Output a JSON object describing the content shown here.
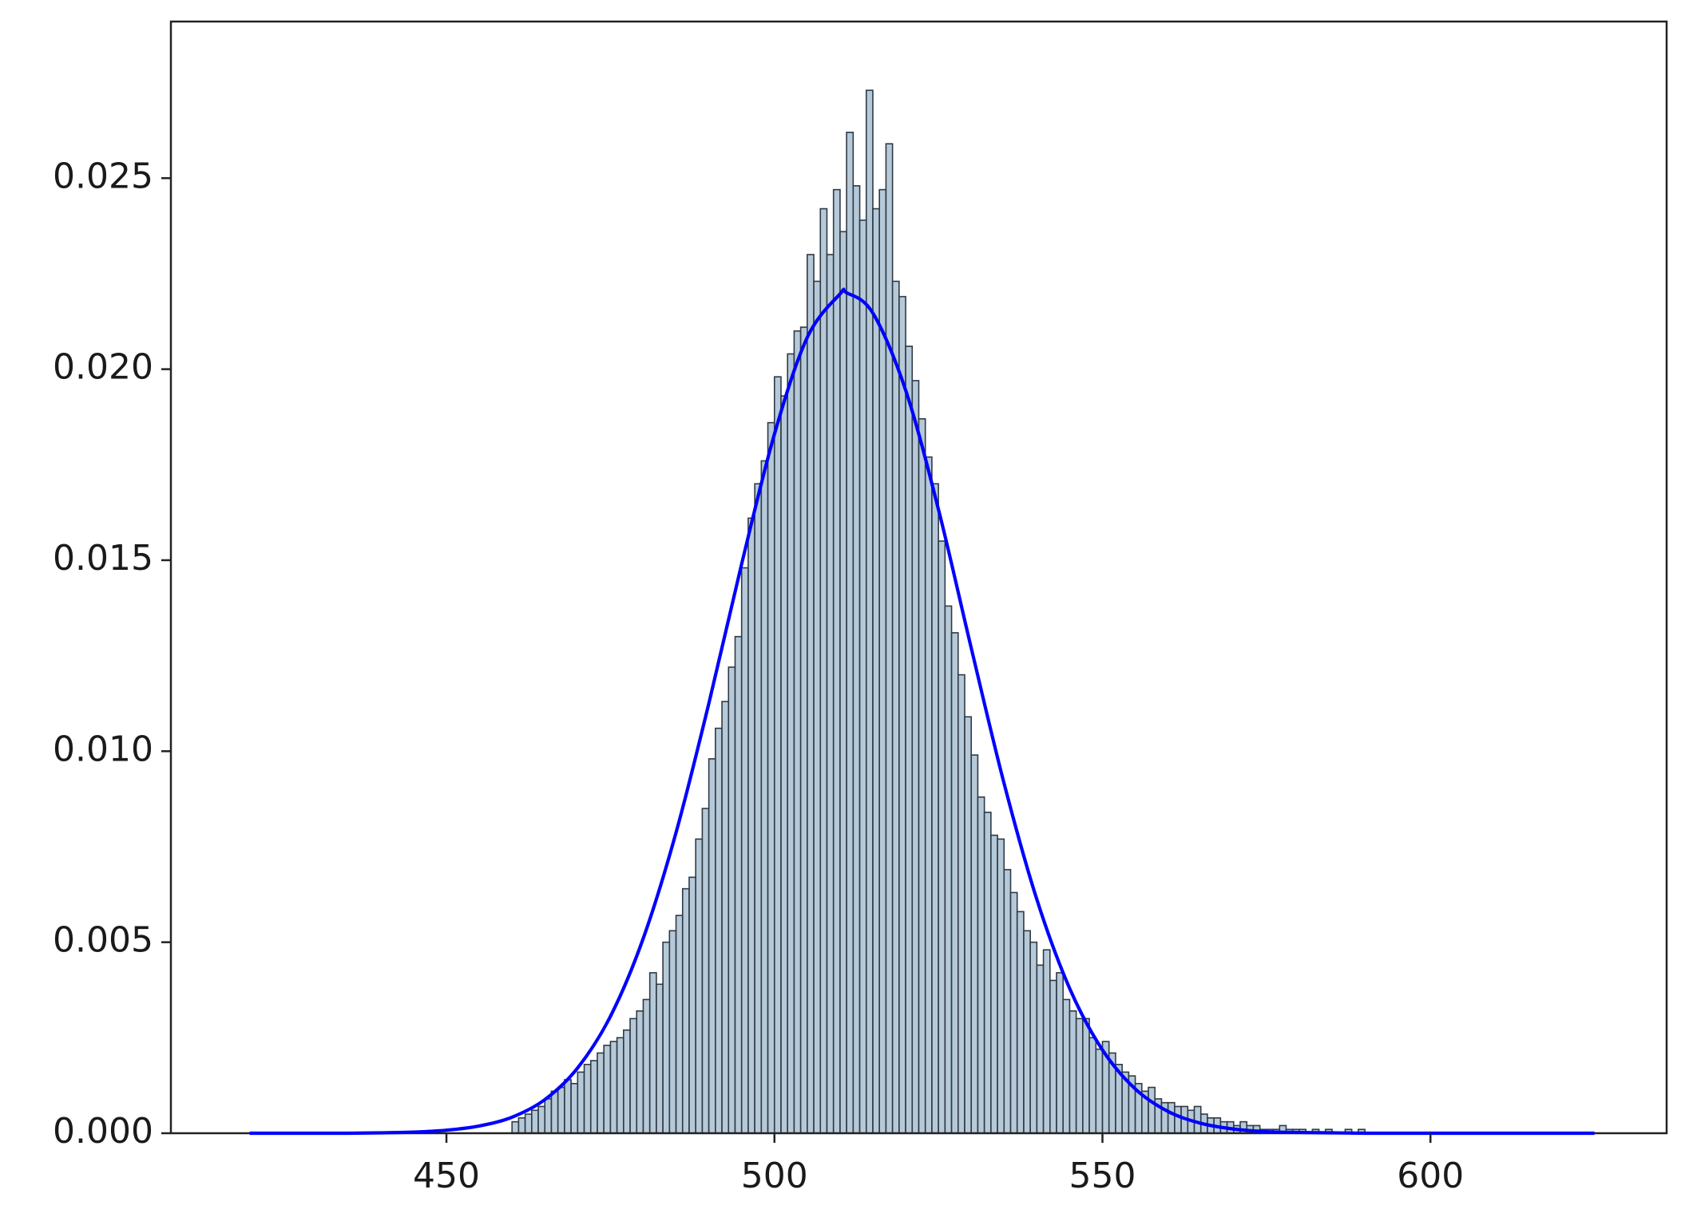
{
  "chart_data": {
    "type": "histogram",
    "bins": [
      460,
      461,
      462,
      463,
      464,
      465,
      466,
      467,
      468,
      469,
      470,
      471,
      472,
      473,
      474,
      475,
      476,
      477,
      478,
      479,
      480,
      481,
      482,
      483,
      484,
      485,
      486,
      487,
      488,
      489,
      490,
      491,
      492,
      493,
      494,
      495,
      496,
      497,
      498,
      499,
      500,
      501,
      502,
      503,
      504,
      505,
      506,
      507,
      508,
      509,
      510,
      511,
      512,
      513,
      514,
      515,
      516,
      517,
      518,
      519,
      520,
      521,
      522,
      523,
      524,
      525,
      526,
      527,
      528,
      529,
      530,
      531,
      532,
      533,
      534,
      535,
      536,
      537,
      538,
      539,
      540,
      541,
      542,
      543,
      544,
      545,
      546,
      547,
      548,
      549,
      550,
      551,
      552,
      553,
      554,
      555,
      556,
      557,
      558,
      559,
      560,
      561,
      562,
      563,
      564,
      565,
      566,
      567,
      568,
      569,
      570,
      571,
      572,
      573,
      574,
      575,
      576,
      577,
      578,
      579,
      580,
      581,
      582,
      583,
      584,
      585,
      586,
      587,
      588,
      589,
      590
    ],
    "values": [
      0.0003,
      0.0004,
      0.0005,
      0.0006,
      0.0007,
      0.0009,
      0.0011,
      0.0012,
      0.0014,
      0.0013,
      0.0016,
      0.0018,
      0.0019,
      0.0021,
      0.0023,
      0.0024,
      0.0025,
      0.0027,
      0.003,
      0.0032,
      0.0035,
      0.0042,
      0.0039,
      0.005,
      0.0053,
      0.0057,
      0.0064,
      0.0067,
      0.0077,
      0.0085,
      0.0098,
      0.0106,
      0.0113,
      0.0122,
      0.013,
      0.0148,
      0.0161,
      0.017,
      0.0176,
      0.0186,
      0.0198,
      0.0193,
      0.0204,
      0.021,
      0.0211,
      0.023,
      0.0223,
      0.0242,
      0.023,
      0.0247,
      0.0236,
      0.0262,
      0.0248,
      0.0239,
      0.0273,
      0.0242,
      0.0247,
      0.0259,
      0.0223,
      0.0219,
      0.0206,
      0.0197,
      0.0187,
      0.0177,
      0.017,
      0.0155,
      0.0138,
      0.0131,
      0.012,
      0.0109,
      0.0099,
      0.0088,
      0.0084,
      0.0078,
      0.0077,
      0.0069,
      0.0063,
      0.0058,
      0.0053,
      0.005,
      0.0044,
      0.0048,
      0.004,
      0.0042,
      0.0035,
      0.0032,
      0.003,
      0.003,
      0.0025,
      0.0022,
      0.0024,
      0.0021,
      0.0018,
      0.0016,
      0.0015,
      0.0013,
      0.0011,
      0.0012,
      0.0009,
      0.0008,
      0.0008,
      0.0007,
      0.0007,
      0.0006,
      0.0007,
      0.0005,
      0.0004,
      0.0004,
      0.0003,
      0.0003,
      0.0002,
      0.0003,
      0.0002,
      0.0002,
      0.0001,
      0.0001,
      0.0001,
      0.0002,
      0.0001,
      0.0001,
      0.0001,
      0,
      0.0001,
      0,
      0.0001,
      0,
      0,
      0.0001,
      0,
      0.0001
    ],
    "color": "#a9bfd2",
    "edgecolor": "#2f3a44",
    "curve": {
      "type": "line",
      "color": "#0000ff",
      "x": [
        420,
        425,
        430,
        435,
        440,
        445,
        450,
        455,
        460,
        465,
        470,
        475,
        480,
        485,
        490,
        495,
        500,
        505,
        510,
        511,
        515,
        520,
        525,
        530,
        535,
        540,
        545,
        550,
        555,
        560,
        565,
        570,
        575,
        580,
        585,
        590,
        595,
        600,
        605,
        610,
        615,
        620,
        625
      ],
      "values": [
        0,
        0,
        0,
        0,
        1e-05,
        3e-05,
        8e-05,
        0.00019,
        0.00042,
        0.00088,
        0.00171,
        0.00306,
        0.0051,
        0.00787,
        0.01125,
        0.0149,
        0.0183,
        0.02083,
        0.02197,
        0.022,
        0.02147,
        0.01945,
        0.01633,
        0.0127,
        0.00916,
        0.00612,
        0.00379,
        0.00218,
        0.00116,
        0.00057,
        0.00026,
        0.00011,
        4e-05,
        2e-05,
        1e-05,
        0,
        0,
        0,
        0,
        0,
        0,
        0,
        0
      ]
    },
    "xlim": [
      408,
      636
    ],
    "ylim": [
      0,
      0.0291
    ],
    "xticks": [
      450,
      500,
      550,
      600
    ],
    "yticks": [
      {
        "value": 0,
        "label": "0.000"
      },
      {
        "value": 0.005,
        "label": "0.005"
      },
      {
        "value": 0.01,
        "label": "0.010"
      },
      {
        "value": 0.015,
        "label": "0.015"
      },
      {
        "value": 0.02,
        "label": "0.020"
      },
      {
        "value": 0.025,
        "label": "0.025"
      }
    ]
  }
}
